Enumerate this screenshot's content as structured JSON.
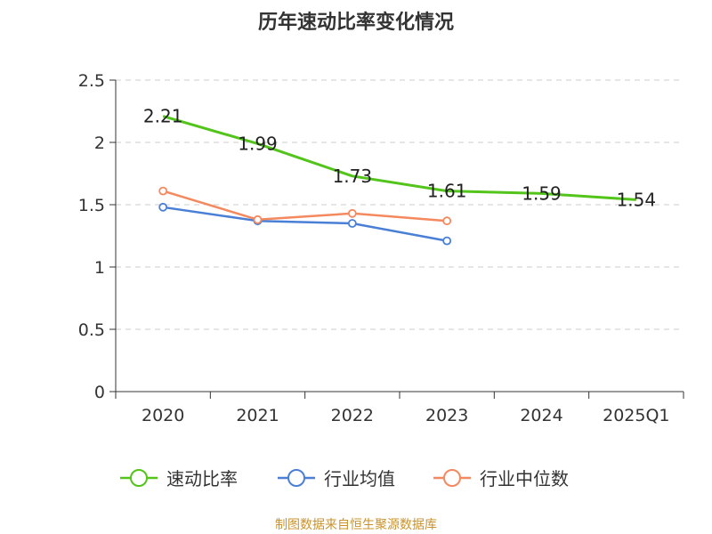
{
  "chart_data": {
    "type": "line",
    "title": "历年速动比率变化情况",
    "categories": [
      "2020",
      "2021",
      "2022",
      "2023",
      "2024",
      "2025Q1"
    ],
    "ylim": [
      0,
      2.5
    ],
    "yticks": [
      "0",
      "0.5",
      "1",
      "1.5",
      "2",
      "2.5"
    ],
    "grid": true,
    "legend_position": "bottom",
    "series": [
      {
        "name": "速动比率",
        "color": "#52c41a",
        "values": [
          2.21,
          1.99,
          1.73,
          1.61,
          1.59,
          1.54
        ],
        "labels": [
          "2.21",
          "1.99",
          "1.73",
          "1.61",
          "1.59",
          "1.54"
        ]
      },
      {
        "name": "行业均值",
        "color": "#4a7fd6",
        "values": [
          1.48,
          1.37,
          1.35,
          1.21,
          null,
          null
        ]
      },
      {
        "name": "行业中位数",
        "color": "#f4895f",
        "values": [
          1.61,
          1.38,
          1.43,
          1.37,
          null,
          null
        ]
      }
    ]
  },
  "source_text": "制图数据来自恒生聚源数据库",
  "source_color": "#c8932d"
}
